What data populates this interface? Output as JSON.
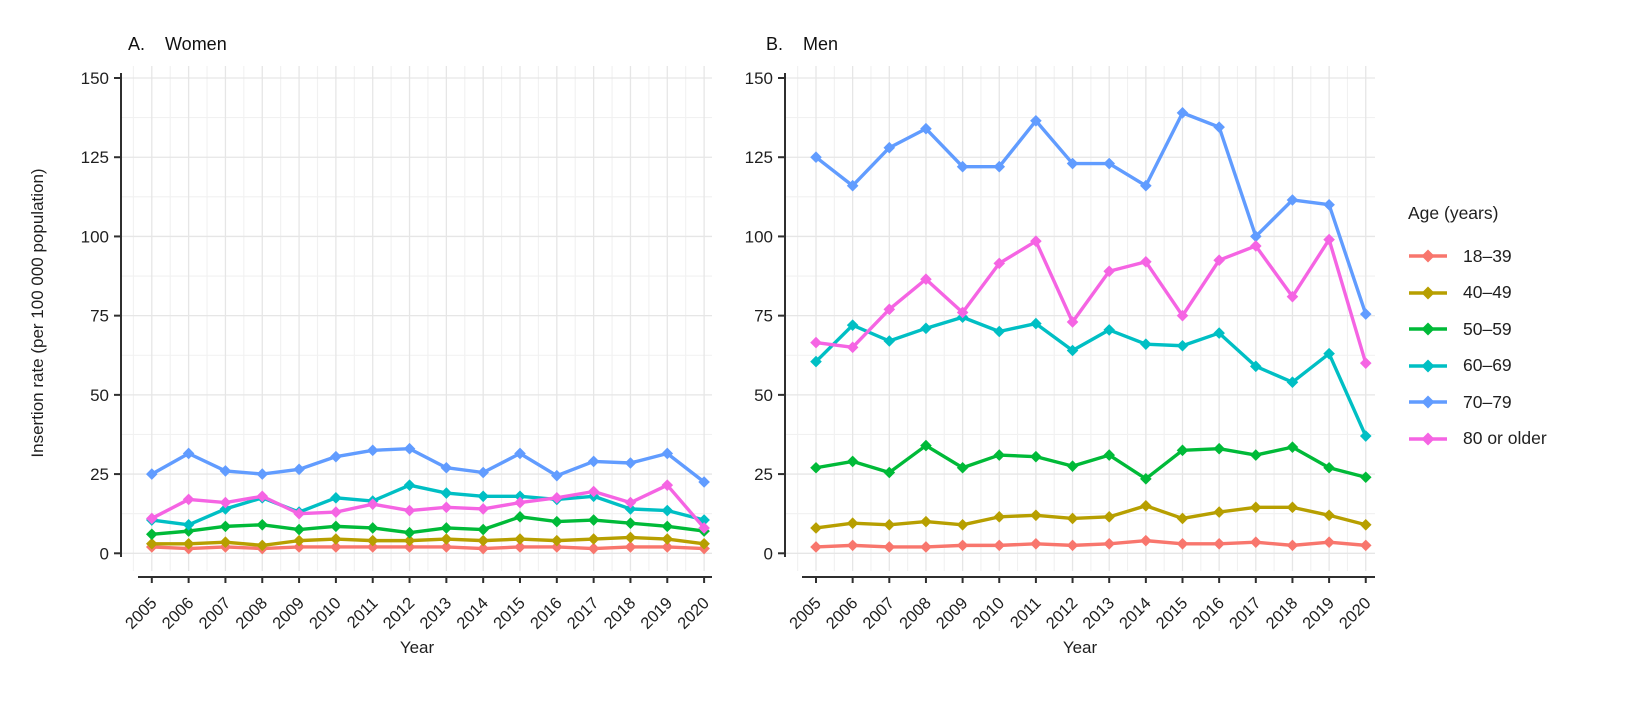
{
  "figure": {
    "y_axis_label": "Insertion rate (per 100 000 population)",
    "background_color": "#ffffff",
    "gridline_color": "#e6e6e6",
    "minor_gridline_color": "#f1f1f1",
    "axis_color": "#2f2f2f",
    "text_color": "#1f1f1f"
  },
  "legend": {
    "title": "Age (years)",
    "position": "right",
    "marker": "diamond",
    "items": [
      {
        "label": "18–39",
        "color": "#F8766D"
      },
      {
        "label": "40–49",
        "color": "#B79F00"
      },
      {
        "label": "50–59",
        "color": "#00BA38"
      },
      {
        "label": "60–69",
        "color": "#00BFC4"
      },
      {
        "label": "70–79",
        "color": "#619CFF"
      },
      {
        "label": "80 or older",
        "color": "#F564E3"
      }
    ]
  },
  "chart_data": [
    {
      "type": "line",
      "panel_label": "A.",
      "title": "Women",
      "xlabel": "Year",
      "ylabel": "Insertion rate (per 100 000 population)",
      "ylim": [
        0,
        150
      ],
      "yticks": [
        0,
        25,
        50,
        75,
        100,
        125,
        150
      ],
      "grid": true,
      "marker": "diamond",
      "x": [
        2005,
        2006,
        2007,
        2008,
        2009,
        2010,
        2011,
        2012,
        2013,
        2014,
        2015,
        2016,
        2017,
        2018,
        2019,
        2020
      ],
      "series": [
        {
          "name": "18–39",
          "color": "#F8766D",
          "values": [
            2,
            1.5,
            2,
            1.5,
            2,
            2,
            2,
            2,
            2,
            1.5,
            2,
            2,
            1.5,
            2,
            2,
            1.5
          ]
        },
        {
          "name": "40–49",
          "color": "#B79F00",
          "values": [
            3,
            3,
            3.5,
            2.5,
            4,
            4.5,
            4,
            4,
            4.5,
            4,
            4.5,
            4,
            4.5,
            5,
            4.5,
            3
          ]
        },
        {
          "name": "50–59",
          "color": "#00BA38",
          "values": [
            6,
            7,
            8.5,
            9,
            7.5,
            8.5,
            8,
            6.5,
            8,
            7.5,
            11.5,
            10,
            10.5,
            9.5,
            8.5,
            7
          ]
        },
        {
          "name": "60–69",
          "color": "#00BFC4",
          "values": [
            10.5,
            9,
            14,
            17.5,
            13,
            17.5,
            16.5,
            21.5,
            19,
            18,
            18,
            17,
            18,
            14,
            13.5,
            10.5
          ]
        },
        {
          "name": "70–79",
          "color": "#619CFF",
          "values": [
            25,
            31.5,
            26,
            25,
            26.5,
            30.5,
            32.5,
            33,
            27,
            25.5,
            31.5,
            24.5,
            29,
            28.5,
            31.5,
            22.5
          ]
        },
        {
          "name": "80 or older",
          "color": "#F564E3",
          "values": [
            11,
            17,
            16,
            18,
            12.5,
            13,
            15.5,
            13.5,
            14.5,
            14,
            16,
            17.5,
            19.5,
            16,
            21.5,
            8
          ]
        }
      ]
    },
    {
      "type": "line",
      "panel_label": "B.",
      "title": "Men",
      "xlabel": "Year",
      "ylabel": "Insertion rate (per 100 000 population)",
      "ylim": [
        0,
        150
      ],
      "yticks": [
        0,
        25,
        50,
        75,
        100,
        125,
        150
      ],
      "grid": true,
      "marker": "diamond",
      "x": [
        2005,
        2006,
        2007,
        2008,
        2009,
        2010,
        2011,
        2012,
        2013,
        2014,
        2015,
        2016,
        2017,
        2018,
        2019,
        2020
      ],
      "series": [
        {
          "name": "18–39",
          "color": "#F8766D",
          "values": [
            2,
            2.5,
            2,
            2,
            2.5,
            2.5,
            3,
            2.5,
            3,
            4,
            3,
            3,
            3.5,
            2.5,
            3.5,
            2.5
          ]
        },
        {
          "name": "40–49",
          "color": "#B79F00",
          "values": [
            8,
            9.5,
            9,
            10,
            9,
            11.5,
            12,
            11,
            11.5,
            15,
            11,
            13,
            14.5,
            14.5,
            12,
            9
          ]
        },
        {
          "name": "50–59",
          "color": "#00BA38",
          "values": [
            27,
            29,
            25.5,
            34,
            27,
            31,
            30.5,
            27.5,
            31,
            23.5,
            32.5,
            33,
            31,
            33.5,
            27,
            24
          ]
        },
        {
          "name": "60–69",
          "color": "#00BFC4",
          "values": [
            60.5,
            72,
            67,
            71,
            74.5,
            70,
            72.5,
            64,
            70.5,
            66,
            65.5,
            69.5,
            59,
            54,
            63,
            37
          ]
        },
        {
          "name": "70–79",
          "color": "#619CFF",
          "values": [
            125,
            116,
            128,
            134,
            122,
            122,
            136.5,
            123,
            123,
            116,
            139,
            134.5,
            100,
            111.5,
            110,
            75.5
          ]
        },
        {
          "name": "80 or older",
          "color": "#F564E3",
          "values": [
            66.5,
            65,
            77,
            86.5,
            76,
            91.5,
            98.5,
            73,
            89,
            92,
            75,
            92.5,
            97,
            81,
            99,
            60
          ]
        }
      ]
    }
  ]
}
